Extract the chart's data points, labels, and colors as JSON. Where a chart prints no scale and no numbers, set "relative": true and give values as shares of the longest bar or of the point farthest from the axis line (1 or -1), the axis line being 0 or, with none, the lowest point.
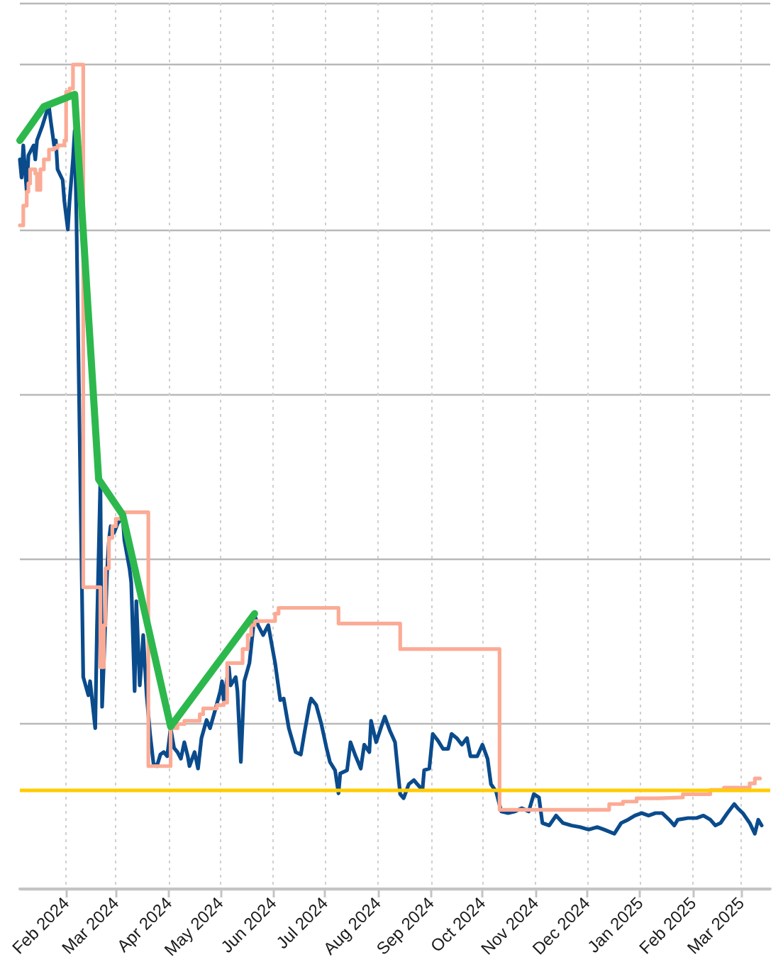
{
  "chart_data": {
    "type": "line",
    "relative": true,
    "grid": true,
    "marker": "none",
    "xlim": [
      "2024-01-05",
      "2025-03-18"
    ],
    "xticks": [
      {
        "value": "2024-02-01",
        "label": "Feb 2024"
      },
      {
        "value": "2024-03-01",
        "label": "Mar 2024"
      },
      {
        "value": "2024-04-01",
        "label": "Apr 2024"
      },
      {
        "value": "2024-05-01",
        "label": "May 2024"
      },
      {
        "value": "2024-06-01",
        "label": "Jun 2024"
      },
      {
        "value": "2024-07-01",
        "label": "Jul 2024"
      },
      {
        "value": "2024-08-01",
        "label": "Aug 2024"
      },
      {
        "value": "2024-09-01",
        "label": "Sep 2024"
      },
      {
        "value": "2024-10-01",
        "label": "Oct 2024"
      },
      {
        "value": "2024-11-01",
        "label": "Nov 2024"
      },
      {
        "value": "2024-12-01",
        "label": "Dec 2024"
      },
      {
        "value": "2025-01-01",
        "label": "Jan 2025"
      },
      {
        "value": "2025-02-01",
        "label": "Feb 2025"
      },
      {
        "value": "2025-03-01",
        "label": "Mar 2025"
      }
    ],
    "ref_lines": [
      {
        "axis": "y",
        "value": 0.122,
        "color": "#ffcc00"
      }
    ],
    "series": [
      {
        "color": "#0a4b8c",
        "x": [
          "2024-01-05",
          "2024-01-06",
          "2024-01-07",
          "2024-01-09",
          "2024-01-10",
          "2024-01-13",
          "2024-01-14",
          "2024-01-15",
          "2024-01-18",
          "2024-01-21",
          "2024-01-22",
          "2024-01-23",
          "2024-01-25",
          "2024-01-26",
          "2024-01-27",
          "2024-01-30",
          "2024-01-31",
          "2024-02-02",
          "2024-02-03",
          "2024-02-05",
          "2024-02-06",
          "2024-02-07",
          "2024-02-11",
          "2024-02-14",
          "2024-02-15",
          "2024-02-18",
          "2024-02-19",
          "2024-02-21",
          "2024-02-22",
          "2024-02-23",
          "2024-02-25",
          "2024-02-26",
          "2024-02-27",
          "2024-02-29",
          "2024-03-02",
          "2024-03-05",
          "2024-03-06",
          "2024-03-09",
          "2024-03-10",
          "2024-03-12",
          "2024-03-13",
          "2024-03-15",
          "2024-03-16",
          "2024-03-17",
          "2024-03-19",
          "2024-03-21",
          "2024-03-23",
          "2024-03-25",
          "2024-03-27",
          "2024-03-29",
          "2024-03-31",
          "2024-04-02",
          "2024-04-04",
          "2024-04-06",
          "2024-04-08",
          "2024-04-10",
          "2024-04-12",
          "2024-04-13",
          "2024-04-16",
          "2024-04-18",
          "2024-04-20",
          "2024-04-23",
          "2024-04-25",
          "2024-04-28",
          "2024-05-01",
          "2024-05-02",
          "2024-05-03",
          "2024-05-06",
          "2024-05-07",
          "2024-05-10",
          "2024-05-11",
          "2024-05-13",
          "2024-05-15",
          "2024-05-18",
          "2024-05-21",
          "2024-05-23",
          "2024-05-26",
          "2024-05-29",
          "2024-06-02",
          "2024-06-05",
          "2024-06-07",
          "2024-06-10",
          "2024-06-14",
          "2024-06-17",
          "2024-06-19",
          "2024-06-22",
          "2024-06-23",
          "2024-06-26",
          "2024-06-29",
          "2024-07-02",
          "2024-07-04",
          "2024-07-07",
          "2024-07-09",
          "2024-07-10",
          "2024-07-14",
          "2024-07-16",
          "2024-07-19",
          "2024-07-22",
          "2024-07-24",
          "2024-07-27",
          "2024-07-28",
          "2024-07-31",
          "2024-08-03",
          "2024-08-05",
          "2024-08-08",
          "2024-08-11",
          "2024-08-14",
          "2024-08-16",
          "2024-08-19",
          "2024-08-22",
          "2024-08-24",
          "2024-08-27",
          "2024-08-28",
          "2024-08-31",
          "2024-09-02",
          "2024-09-05",
          "2024-09-08",
          "2024-09-11",
          "2024-09-13",
          "2024-09-16",
          "2024-09-19",
          "2024-09-22",
          "2024-09-24",
          "2024-09-28",
          "2024-10-01",
          "2024-10-04",
          "2024-10-06",
          "2024-10-09",
          "2024-10-12",
          "2024-10-16",
          "2024-10-20",
          "2024-10-24",
          "2024-10-28",
          "2024-10-31",
          "2024-11-03",
          "2024-11-05",
          "2024-11-09",
          "2024-11-13",
          "2024-11-17",
          "2024-11-22",
          "2024-11-27",
          "2024-12-02",
          "2024-12-07",
          "2024-12-11",
          "2024-12-17",
          "2024-12-21",
          "2024-12-25",
          "2024-12-29",
          "2025-01-02",
          "2025-01-06",
          "2025-01-10",
          "2025-01-14",
          "2025-01-18",
          "2025-01-21",
          "2025-01-23",
          "2025-01-29",
          "2025-02-03",
          "2025-02-07",
          "2025-02-11",
          "2025-02-14",
          "2025-02-17",
          "2025-02-21",
          "2025-02-25",
          "2025-02-27",
          "2025-03-02",
          "2025-03-06",
          "2025-03-09",
          "2025-03-11",
          "2025-03-13"
        ],
        "values": [
          0.885,
          0.863,
          0.902,
          0.846,
          0.89,
          0.902,
          0.885,
          0.908,
          0.925,
          0.945,
          0.949,
          0.932,
          0.902,
          0.908,
          0.873,
          0.86,
          0.834,
          0.8,
          0.834,
          0.885,
          0.92,
          0.817,
          0.257,
          0.235,
          0.252,
          0.195,
          0.315,
          0.497,
          0.221,
          0.274,
          0.389,
          0.423,
          0.44,
          0.432,
          0.443,
          0.452,
          0.423,
          0.389,
          0.372,
          0.24,
          0.349,
          0.247,
          0.274,
          0.308,
          0.235,
          0.188,
          0.152,
          0.149,
          0.163,
          0.166,
          0.161,
          0.195,
          0.171,
          0.166,
          0.158,
          0.178,
          0.161,
          0.149,
          0.166,
          0.146,
          0.183,
          0.205,
          0.195,
          0.217,
          0.24,
          0.252,
          0.229,
          0.269,
          0.247,
          0.257,
          0.24,
          0.154,
          0.252,
          0.274,
          0.332,
          0.32,
          0.308,
          0.32,
          0.274,
          0.229,
          0.231,
          0.195,
          0.166,
          0.163,
          0.188,
          0.223,
          0.231,
          0.223,
          0.2,
          0.171,
          0.154,
          0.144,
          0.116,
          0.14,
          0.144,
          0.178,
          0.161,
          0.146,
          0.175,
          0.166,
          0.204,
          0.178,
          0.197,
          0.209,
          0.192,
          0.178,
          0.115,
          0.11,
          0.127,
          0.132,
          0.127,
          0.12,
          0.144,
          0.146,
          0.188,
          0.18,
          0.17,
          0.17,
          0.188,
          0.183,
          0.175,
          0.183,
          0.161,
          0.161,
          0.175,
          0.158,
          0.127,
          0.118,
          0.094,
          0.092,
          0.094,
          0.098,
          0.094,
          0.115,
          0.111,
          0.08,
          0.077,
          0.089,
          0.08,
          0.077,
          0.075,
          0.072,
          0.075,
          0.072,
          0.067,
          0.08,
          0.084,
          0.089,
          0.092,
          0.089,
          0.092,
          0.092,
          0.084,
          0.077,
          0.084,
          0.086,
          0.086,
          0.089,
          0.084,
          0.077,
          0.08,
          0.092,
          0.103,
          0.098,
          0.092,
          0.08,
          0.067,
          0.084,
          0.077
        ]
      },
      {
        "type": "step",
        "color": "#fbab95",
        "x": [
          "2024-01-05",
          "2024-01-07",
          "2024-01-09",
          "2024-01-10",
          "2024-01-11",
          "2024-01-14",
          "2024-01-15",
          "2024-01-17",
          "2024-01-19",
          "2024-01-22",
          "2024-01-25",
          "2024-01-27",
          "2024-01-31",
          "2024-02-01",
          "2024-02-03",
          "2024-02-05",
          "2024-02-11",
          "2024-02-21",
          "2024-02-23",
          "2024-02-24",
          "2024-02-26",
          "2024-02-28",
          "2024-03-01",
          "2024-03-04",
          "2024-03-20",
          "2024-04-02",
          "2024-04-06",
          "2024-04-10",
          "2024-04-19",
          "2024-04-21",
          "2024-04-29",
          "2024-05-03",
          "2024-05-05",
          "2024-05-14",
          "2024-05-17",
          "2024-05-19",
          "2024-05-21",
          "2024-06-02",
          "2024-06-04",
          "2024-07-09",
          "2024-08-14",
          "2024-10-11",
          "2024-12-14",
          "2024-12-22",
          "2024-12-30",
          "2025-01-12",
          "2025-01-26",
          "2025-02-11",
          "2025-02-19",
          "2025-03-06",
          "2025-03-09",
          "2025-03-12"
        ],
        "values": [
          0.805,
          0.829,
          0.846,
          0.856,
          0.873,
          0.868,
          0.848,
          0.873,
          0.885,
          0.897,
          0.899,
          0.902,
          0.908,
          0.967,
          0.971,
          1.0,
          0.366,
          0.269,
          0.32,
          0.389,
          0.426,
          0.44,
          0.449,
          0.457,
          0.149,
          0.195,
          0.2,
          0.204,
          0.212,
          0.219,
          0.223,
          0.226,
          0.274,
          0.291,
          0.308,
          0.32,
          0.325,
          0.334,
          0.341,
          0.322,
          0.291,
          0.096,
          0.103,
          0.106,
          0.11,
          0.111,
          0.115,
          0.12,
          0.123,
          0.128,
          0.134,
          0.135
        ]
      },
      {
        "color": "#2db84d",
        "x": [
          "2024-01-05",
          "2024-01-19",
          "2024-02-06",
          "2024-02-20",
          "2024-03-05",
          "2024-04-02",
          "2024-05-21"
        ],
        "values": [
          0.908,
          0.949,
          0.964,
          0.497,
          0.454,
          0.197,
          0.334
        ]
      }
    ]
  }
}
